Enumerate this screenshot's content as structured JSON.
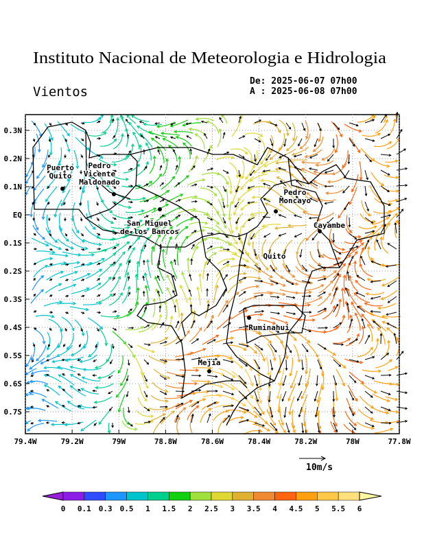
{
  "header": {
    "title": "Instituto Nacional de Meteorologia e Hidrologia",
    "subtitle": "Vientos",
    "from": "De: 2025-06-07 07h00",
    "to": "A : 2025-06-08 07h00"
  },
  "map": {
    "xlim": [
      -79.4,
      -77.8
    ],
    "ylim": [
      -0.778,
      0.356
    ],
    "xticks": [
      {
        "value": -79.4,
        "label": "79.4W"
      },
      {
        "value": -79.2,
        "label": "79.2W"
      },
      {
        "value": -79.0,
        "label": "79W"
      },
      {
        "value": -78.8,
        "label": "78.8W"
      },
      {
        "value": -78.6,
        "label": "78.6W"
      },
      {
        "value": -78.4,
        "label": "78.4W"
      },
      {
        "value": -78.2,
        "label": "78.2W"
      },
      {
        "value": -78.0,
        "label": "78W"
      },
      {
        "value": -77.8,
        "label": "77.8W"
      }
    ],
    "yticks": [
      {
        "value": 0.3,
        "label": "0.3N"
      },
      {
        "value": 0.2,
        "label": "0.2N"
      },
      {
        "value": 0.1,
        "label": "0.1N"
      },
      {
        "value": 0,
        "label": "EQ"
      },
      {
        "value": -0.1,
        "label": "0.1S"
      },
      {
        "value": -0.2,
        "label": "0.2S"
      },
      {
        "value": -0.3,
        "label": "0.3S"
      },
      {
        "value": -0.4,
        "label": "0.4S"
      },
      {
        "value": -0.5,
        "label": "0.5S"
      },
      {
        "value": -0.6,
        "label": "0.6S"
      },
      {
        "value": -0.7,
        "label": "0.7S"
      }
    ],
    "grid": true
  },
  "places": [
    {
      "lines": [
        "Puerto",
        "Quito"
      ]
    },
    {
      "lines": [
        "Pedro",
        "Vicente",
        "Maldonado"
      ]
    },
    {
      "lines": [
        "San Miguel",
        "de los Bancos"
      ]
    },
    {
      "lines": [
        "Pedro",
        "Moncayo"
      ]
    },
    {
      "lines": [
        "Cayambe"
      ]
    },
    {
      "lines": [
        "Quito"
      ]
    },
    {
      "lines": [
        "Ruminahui"
      ]
    },
    {
      "lines": [
        "Mejia"
      ]
    }
  ],
  "legend": {
    "reference": "10m/s"
  },
  "colorbar": {
    "levels": [
      0,
      0.1,
      0.3,
      0.5,
      1,
      1.5,
      2,
      2.5,
      3,
      3.5,
      4,
      4.5,
      5,
      5.5,
      6
    ],
    "colors": [
      "#9a1fd8",
      "#8a1ee6",
      "#2f4cff",
      "#1e96ff",
      "#00c4cc",
      "#00d08c",
      "#10d010",
      "#a0e03c",
      "#e0d832",
      "#e0b030",
      "#f08a30",
      "#ff6410",
      "#ffa010",
      "#ffc848",
      "#ffe07c",
      "#fff8a0"
    ]
  }
}
